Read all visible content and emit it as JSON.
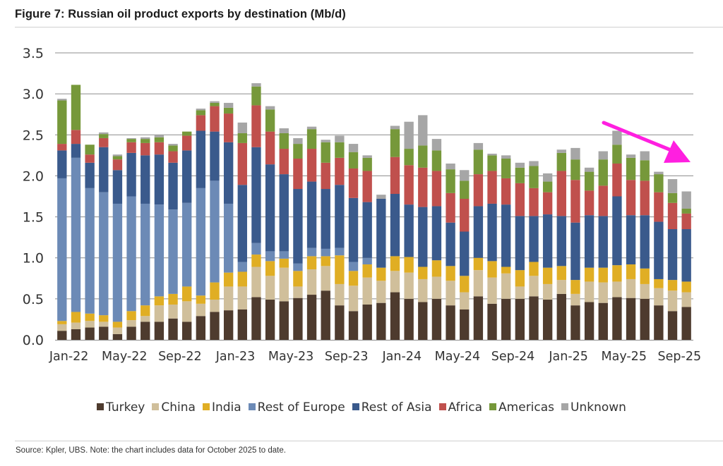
{
  "figure": {
    "title": "Figure 7: Russian oil product exports by destination (Mb/d)",
    "footnote": "Source: Kpler, UBS. Note: the chart includes data for October 2025 to date."
  },
  "annotation": {
    "type": "arrow",
    "color": "#ff1fe0",
    "meaning": "downward trend in recent months"
  },
  "chart_data": {
    "type": "bar",
    "stacked": true,
    "title": "Russian oil product exports by destination (Mb/d)",
    "xlabel": "",
    "ylabel": "",
    "ylim": [
      0,
      3.5
    ],
    "yticks": [
      0.0,
      0.5,
      1.0,
      1.5,
      2.0,
      2.5,
      3.0,
      3.5
    ],
    "ytick_labels": [
      "0.0",
      "0.5",
      "1.0",
      "1.5",
      "2.0",
      "2.5",
      "3.0",
      "3.5"
    ],
    "grid": true,
    "legend_position": "bottom",
    "xtick_labels": [
      "Jan-22",
      "May-22",
      "Sep-22",
      "Jan-23",
      "May-23",
      "Sep-23",
      "Jan-24",
      "May-24",
      "Sep-24",
      "Jan-25",
      "May-25",
      "Sep-25"
    ],
    "xtick_every": 4,
    "categories": [
      "Jan-22",
      "Feb-22",
      "Mar-22",
      "Apr-22",
      "May-22",
      "Jun-22",
      "Jul-22",
      "Aug-22",
      "Sep-22",
      "Oct-22",
      "Nov-22",
      "Dec-22",
      "Jan-23",
      "Feb-23",
      "Mar-23",
      "Apr-23",
      "May-23",
      "Jun-23",
      "Jul-23",
      "Aug-23",
      "Sep-23",
      "Oct-23",
      "Nov-23",
      "Dec-23",
      "Jan-24",
      "Feb-24",
      "Mar-24",
      "Apr-24",
      "May-24",
      "Jun-24",
      "Jul-24",
      "Aug-24",
      "Sep-24",
      "Oct-24",
      "Nov-24",
      "Dec-24",
      "Jan-25",
      "Feb-25",
      "Mar-25",
      "Apr-25",
      "May-25",
      "Jun-25",
      "Jul-25",
      "Aug-25",
      "Sep-25",
      "Oct-25"
    ],
    "series": [
      {
        "name": "Turkey",
        "color": "#4e3b2e",
        "values": [
          0.11,
          0.13,
          0.15,
          0.16,
          0.07,
          0.16,
          0.22,
          0.22,
          0.26,
          0.22,
          0.29,
          0.34,
          0.36,
          0.37,
          0.52,
          0.49,
          0.47,
          0.51,
          0.55,
          0.6,
          0.42,
          0.35,
          0.43,
          0.45,
          0.58,
          0.5,
          0.46,
          0.5,
          0.42,
          0.37,
          0.53,
          0.44,
          0.5,
          0.5,
          0.53,
          0.49,
          0.56,
          0.42,
          0.46,
          0.45,
          0.52,
          0.51,
          0.5,
          0.42,
          0.35,
          0.4
        ]
      },
      {
        "name": "China",
        "color": "#d0bf9b",
        "values": [
          0.08,
          0.08,
          0.08,
          0.06,
          0.08,
          0.08,
          0.07,
          0.2,
          0.17,
          0.25,
          0.15,
          0.15,
          0.29,
          0.28,
          0.37,
          0.29,
          0.41,
          0.14,
          0.31,
          0.3,
          0.26,
          0.31,
          0.33,
          0.27,
          0.26,
          0.32,
          0.28,
          0.27,
          0.3,
          0.21,
          0.32,
          0.32,
          0.31,
          0.15,
          0.25,
          0.19,
          0.17,
          0.14,
          0.25,
          0.25,
          0.19,
          0.23,
          0.18,
          0.21,
          0.25,
          0.18
        ]
      },
      {
        "name": "India",
        "color": "#e0ae24",
        "values": [
          0.04,
          0.13,
          0.09,
          0.08,
          0.07,
          0.11,
          0.13,
          0.11,
          0.13,
          0.18,
          0.1,
          0.21,
          0.17,
          0.18,
          0.15,
          0.18,
          0.11,
          0.19,
          0.16,
          0.12,
          0.35,
          0.18,
          0.16,
          0.16,
          0.18,
          0.19,
          0.15,
          0.2,
          0.18,
          0.2,
          0.15,
          0.2,
          0.08,
          0.2,
          0.17,
          0.2,
          0.17,
          0.17,
          0.17,
          0.18,
          0.2,
          0.18,
          0.19,
          0.11,
          0.13,
          0.13
        ]
      },
      {
        "name": "Rest of Europe",
        "color": "#6c8ab6",
        "values": [
          1.74,
          1.88,
          1.53,
          1.5,
          1.44,
          1.4,
          1.24,
          1.12,
          1.03,
          1.02,
          1.31,
          1.24,
          0.84,
          0.12,
          0.14,
          0.12,
          0.09,
          0.09,
          0.1,
          0.09,
          0.09,
          0.11,
          0.08,
          0.0,
          0.0,
          0.0,
          0.0,
          0.0,
          0.0,
          0.0,
          0.0,
          0.0,
          0.0,
          0.0,
          0.0,
          0.0,
          0.0,
          0.0,
          0.0,
          0.0,
          0.0,
          0.0,
          0.0,
          0.0,
          0.0,
          0.0
        ]
      },
      {
        "name": "Rest of Asia",
        "color": "#3a5a8c",
        "values": [
          0.34,
          0.17,
          0.31,
          0.55,
          0.41,
          0.53,
          0.59,
          0.61,
          0.57,
          0.64,
          0.7,
          0.6,
          0.75,
          0.94,
          1.17,
          1.06,
          0.94,
          0.91,
          0.81,
          0.73,
          0.77,
          0.78,
          0.68,
          0.84,
          0.76,
          0.64,
          0.73,
          0.66,
          0.53,
          0.54,
          0.63,
          0.7,
          0.76,
          0.66,
          0.56,
          0.65,
          0.61,
          0.7,
          0.64,
          0.63,
          0.84,
          0.6,
          0.65,
          0.7,
          0.62,
          0.64
        ]
      },
      {
        "name": "Africa",
        "color": "#c0504d",
        "values": [
          0.08,
          0.17,
          0.1,
          0.11,
          0.13,
          0.13,
          0.15,
          0.15,
          0.14,
          0.18,
          0.19,
          0.31,
          0.35,
          0.51,
          0.51,
          0.4,
          0.31,
          0.37,
          0.4,
          0.32,
          0.33,
          0.36,
          0.38,
          0.0,
          0.45,
          0.48,
          0.48,
          0.43,
          0.36,
          0.4,
          0.39,
          0.4,
          0.32,
          0.4,
          0.34,
          0.27,
          0.55,
          0.52,
          0.3,
          0.37,
          0.4,
          0.43,
          0.42,
          0.36,
          0.32,
          0.19
        ]
      },
      {
        "name": "Americas",
        "color": "#76983a",
        "values": [
          0.53,
          0.55,
          0.12,
          0.05,
          0.04,
          0.04,
          0.05,
          0.06,
          0.07,
          0.05,
          0.06,
          0.04,
          0.07,
          0.12,
          0.23,
          0.27,
          0.19,
          0.18,
          0.24,
          0.25,
          0.19,
          0.2,
          0.16,
          0.0,
          0.34,
          0.2,
          0.27,
          0.25,
          0.29,
          0.22,
          0.3,
          0.19,
          0.24,
          0.19,
          0.27,
          0.13,
          0.22,
          0.25,
          0.23,
          0.32,
          0.23,
          0.27,
          0.25,
          0.22,
          0.12,
          0.06
        ]
      },
      {
        "name": "Unknown",
        "color": "#a6a6a6",
        "values": [
          0.02,
          0.0,
          0.0,
          0.02,
          0.02,
          0.01,
          0.02,
          0.03,
          0.02,
          0.0,
          0.02,
          0.02,
          0.06,
          0.13,
          0.04,
          0.04,
          0.06,
          0.07,
          0.03,
          0.03,
          0.08,
          0.1,
          0.03,
          0.05,
          0.04,
          0.33,
          0.37,
          0.14,
          0.07,
          0.13,
          0.08,
          0.02,
          0.04,
          0.06,
          0.06,
          0.1,
          0.04,
          0.14,
          0.05,
          0.1,
          0.17,
          0.04,
          0.11,
          0.03,
          0.17,
          0.21
        ]
      }
    ]
  },
  "legend": [
    {
      "name": "Turkey",
      "color": "#4e3b2e"
    },
    {
      "name": "China",
      "color": "#d0bf9b"
    },
    {
      "name": "India",
      "color": "#e0ae24"
    },
    {
      "name": "Rest of Europe",
      "color": "#6c8ab6"
    },
    {
      "name": "Rest of Asia",
      "color": "#3a5a8c"
    },
    {
      "name": "Africa",
      "color": "#c0504d"
    },
    {
      "name": "Americas",
      "color": "#76983a"
    },
    {
      "name": "Unknown",
      "color": "#a6a6a6"
    }
  ]
}
